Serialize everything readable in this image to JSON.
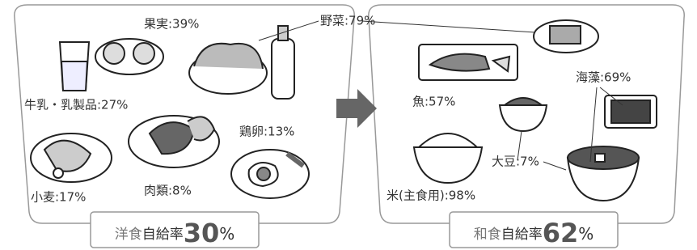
{
  "western": {
    "items": [
      {
        "label": "果実:39%"
      },
      {
        "label": "野菜:79%"
      },
      {
        "label": "牛乳・乳製品:27%"
      },
      {
        "label": "鶏卵:13%"
      },
      {
        "label": "小麦:17%"
      },
      {
        "label": "肉類:8%"
      }
    ],
    "total": {
      "name": "洋食",
      "suffix": "自給率",
      "value": 30,
      "unit": "%"
    }
  },
  "japanese": {
    "items": [
      {
        "label": "魚:57%"
      },
      {
        "label": "海藻:69%"
      },
      {
        "label": "大豆:7%"
      },
      {
        "label": "米(主食用):98%"
      }
    ],
    "total": {
      "name": "和食",
      "suffix": "自給率",
      "value": 62,
      "unit": "%"
    }
  }
}
